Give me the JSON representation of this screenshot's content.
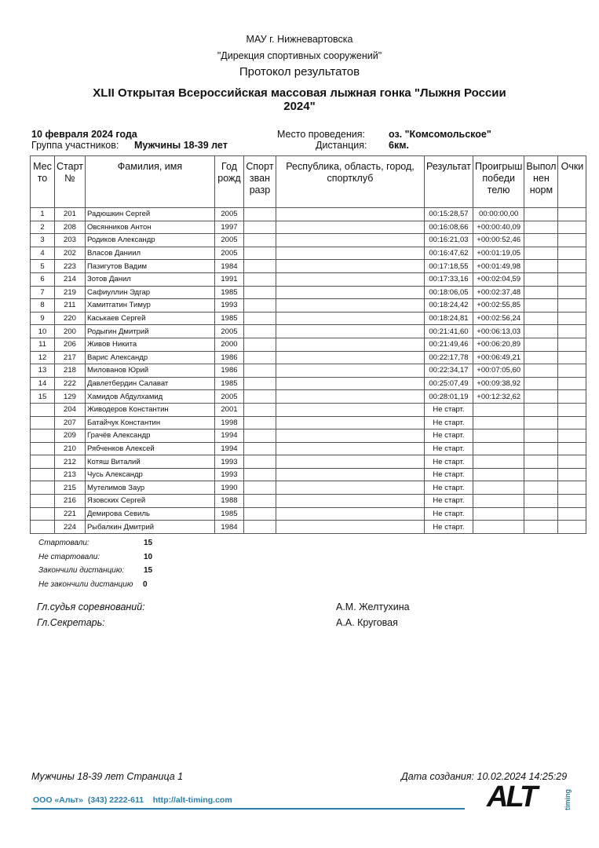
{
  "header": {
    "org": "МАУ г. Нижневартовска",
    "dept": "\"Дирекция спортивных сооружений\"",
    "doc_title": "Протокол результатов",
    "event_line1": "XLII Открытая Всероссийская массовая лыжная гонка \"Лыжня России",
    "event_line2": "2024\""
  },
  "info": {
    "date": "10 февраля 2024 года",
    "group_label": "Группа участников:",
    "group_value": "Мужчины 18-39 лет",
    "venue_label": "Место проведения:",
    "venue_value": "оз. \"Комсомольское\"",
    "distance_label": "Дистанция:",
    "distance_value": "6км."
  },
  "table": {
    "columns": [
      "Мес то",
      "Старт №",
      "Фамилия, имя",
      "Год рожд",
      "Спорт зван разр",
      "Республика, область, город, спортклуб",
      "Результат",
      "Проигрыш победи телю",
      "Выпол нен норм",
      "Очки"
    ],
    "rows": [
      [
        "1",
        "201",
        "Радюшкин Сергей",
        "2005",
        "",
        "",
        "00:15:28,57",
        "00:00:00,00",
        "",
        ""
      ],
      [
        "2",
        "208",
        "Овсянников Антон",
        "1997",
        "",
        "",
        "00:16:08,66",
        "+00:00:40,09",
        "",
        ""
      ],
      [
        "3",
        "203",
        "Родиков Александр",
        "2005",
        "",
        "",
        "00:16:21,03",
        "+00:00:52,46",
        "",
        ""
      ],
      [
        "4",
        "202",
        "Власов Даниил",
        "2005",
        "",
        "",
        "00:16:47,62",
        "+00:01:19,05",
        "",
        ""
      ],
      [
        "5",
        "223",
        "Пазигутов Вадим",
        "1984",
        "",
        "",
        "00:17:18,55",
        "+00:01:49,98",
        "",
        ""
      ],
      [
        "6",
        "214",
        "Зотов Данил",
        "1991",
        "",
        "",
        "00:17:33,16",
        "+00:02:04,59",
        "",
        ""
      ],
      [
        "7",
        "219",
        "Сафиуллин Эдгар",
        "1985",
        "",
        "",
        "00:18:06,05",
        "+00:02:37,48",
        "",
        ""
      ],
      [
        "8",
        "211",
        "Хамитгатин Тимур",
        "1993",
        "",
        "",
        "00:18:24,42",
        "+00:02:55,85",
        "",
        ""
      ],
      [
        "9",
        "220",
        "Каськаев Сергей",
        "1985",
        "",
        "",
        "00:18:24,81",
        "+00:02:56,24",
        "",
        ""
      ],
      [
        "10",
        "200",
        "Родыгин Дмитрий",
        "2005",
        "",
        "",
        "00:21:41,60",
        "+00:06:13,03",
        "",
        ""
      ],
      [
        "11",
        "206",
        "Живов Никита",
        "2000",
        "",
        "",
        "00:21:49,46",
        "+00:06:20,89",
        "",
        ""
      ],
      [
        "12",
        "217",
        "Варис Александр",
        "1986",
        "",
        "",
        "00:22:17,78",
        "+00:06:49,21",
        "",
        ""
      ],
      [
        "13",
        "218",
        "Милованов Юрий",
        "1986",
        "",
        "",
        "00:22:34,17",
        "+00:07:05,60",
        "",
        ""
      ],
      [
        "14",
        "222",
        "Давлетбердин Салават",
        "1985",
        "",
        "",
        "00:25:07,49",
        "+00:09:38,92",
        "",
        ""
      ],
      [
        "15",
        "129",
        "Хамидов Абдулхамид",
        "2005",
        "",
        "",
        "00:28:01,19",
        "+00:12:32,62",
        "",
        ""
      ],
      [
        "",
        "204",
        "Живодеров Константин",
        "2001",
        "",
        "",
        "Не старт.",
        "",
        "",
        ""
      ],
      [
        "",
        "207",
        "Батайчук Константин",
        "1998",
        "",
        "",
        "Не старт.",
        "",
        "",
        ""
      ],
      [
        "",
        "209",
        "Грачёв Александр",
        "1994",
        "",
        "",
        "Не старт.",
        "",
        "",
        ""
      ],
      [
        "",
        "210",
        "Рябченков Алексей",
        "1994",
        "",
        "",
        "Не старт.",
        "",
        "",
        ""
      ],
      [
        "",
        "212",
        "Котяш Виталий",
        "1993",
        "",
        "",
        "Не старт.",
        "",
        "",
        ""
      ],
      [
        "",
        "213",
        "Чусь Александр",
        "1993",
        "",
        "",
        "Не старт.",
        "",
        "",
        ""
      ],
      [
        "",
        "215",
        "Мутелимов Заур",
        "1990",
        "",
        "",
        "Не старт.",
        "",
        "",
        ""
      ],
      [
        "",
        "216",
        "Язовских Сергей",
        "1988",
        "",
        "",
        "Не старт.",
        "",
        "",
        ""
      ],
      [
        "",
        "221",
        "Демирова Севиль",
        "1985",
        "",
        "",
        "Не старт.",
        "",
        "",
        ""
      ],
      [
        "",
        "224",
        "Рыбалкин Дмитрий",
        "1984",
        "",
        "",
        "Не старт.",
        "",
        "",
        ""
      ]
    ]
  },
  "stats": [
    {
      "label": "Стартовали:",
      "value": "15"
    },
    {
      "label": "Не стартовали:",
      "value": "10"
    },
    {
      "label": "Закончили дистанцию:",
      "value": "15"
    },
    {
      "label": "Не закончили дистанцию",
      "value": "0"
    }
  ],
  "officials": [
    {
      "role": "Гл.судья соревнований:",
      "name": "А.М. Желтухина"
    },
    {
      "role": "Гл.Секретарь:",
      "name": "А.А. Круговая"
    }
  ],
  "footer": {
    "page": "Мужчины 18-39 лет Страница 1",
    "created": "Дата создания: 10.02.2024 14:25:29",
    "company": "ООО «Альт»  (343) 2222-611    http://alt-timing.com",
    "logo": "ALT",
    "logo_sub": "timing",
    "accent": "#2a7fa8"
  }
}
